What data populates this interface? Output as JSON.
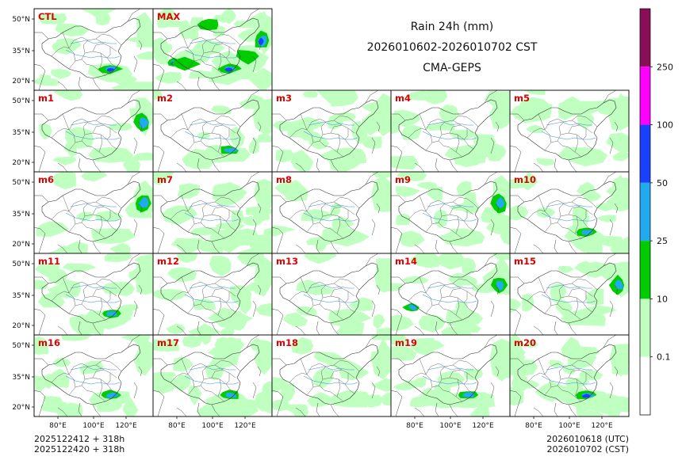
{
  "title": {
    "line1": "Rain 24h (mm)",
    "line2": "2026010602-2026010702 CST",
    "line3": "CMA-GEPS"
  },
  "footer": {
    "left1": "2025122412 + 318h",
    "left2": "2025122420 + 318h",
    "right1": "2026010618 (UTC)",
    "right2": "2026010702 (CST)"
  },
  "chart_data": {
    "type": "heatmap",
    "description_kind": "ensemble precipitation map panels",
    "panels": [
      {
        "label": "CTL",
        "row": 0,
        "col": 0,
        "coverage": "light",
        "heavy": [
          "south-china"
        ]
      },
      {
        "label": "MAX",
        "row": 0,
        "col": 1,
        "coverage": "wide",
        "heavy": [
          "south-china",
          "east-coast",
          "southwest"
        ]
      },
      {
        "label": "m1",
        "row": 1,
        "col": 0,
        "coverage": "sparse",
        "heavy": [
          "east-coast"
        ]
      },
      {
        "label": "m2",
        "row": 1,
        "col": 1,
        "coverage": "sparse",
        "heavy": [
          "south-china"
        ]
      },
      {
        "label": "m3",
        "row": 1,
        "col": 2,
        "coverage": "moderate",
        "heavy": []
      },
      {
        "label": "m4",
        "row": 1,
        "col": 3,
        "coverage": "moderate",
        "heavy": []
      },
      {
        "label": "m5",
        "row": 1,
        "col": 4,
        "coverage": "moderate",
        "heavy": []
      },
      {
        "label": "m6",
        "row": 2,
        "col": 0,
        "coverage": "sparse",
        "heavy": [
          "east-coast"
        ]
      },
      {
        "label": "m7",
        "row": 2,
        "col": 1,
        "coverage": "wide",
        "heavy": []
      },
      {
        "label": "m8",
        "row": 2,
        "col": 2,
        "coverage": "sparse",
        "heavy": []
      },
      {
        "label": "m9",
        "row": 2,
        "col": 3,
        "coverage": "moderate",
        "heavy": [
          "east-coast"
        ]
      },
      {
        "label": "m10",
        "row": 2,
        "col": 4,
        "coverage": "moderate",
        "heavy": [
          "south-china"
        ]
      },
      {
        "label": "m11",
        "row": 3,
        "col": 0,
        "coverage": "moderate",
        "heavy": [
          "south-china"
        ]
      },
      {
        "label": "m12",
        "row": 3,
        "col": 1,
        "coverage": "moderate",
        "heavy": []
      },
      {
        "label": "m13",
        "row": 3,
        "col": 2,
        "coverage": "sparse",
        "heavy": []
      },
      {
        "label": "m14",
        "row": 3,
        "col": 3,
        "coverage": "moderate",
        "heavy": [
          "southwest",
          "east-coast"
        ]
      },
      {
        "label": "m15",
        "row": 3,
        "col": 4,
        "coverage": "sparse",
        "heavy": [
          "east-coast"
        ]
      },
      {
        "label": "m16",
        "row": 4,
        "col": 0,
        "coverage": "moderate",
        "heavy": [
          "south-china"
        ]
      },
      {
        "label": "m17",
        "row": 4,
        "col": 1,
        "coverage": "wide",
        "heavy": [
          "south-china"
        ]
      },
      {
        "label": "m18",
        "row": 4,
        "col": 2,
        "coverage": "moderate",
        "heavy": []
      },
      {
        "label": "m19",
        "row": 4,
        "col": 3,
        "coverage": "moderate",
        "heavy": [
          "south-china"
        ]
      },
      {
        "label": "m20",
        "row": 4,
        "col": 4,
        "coverage": "wide",
        "heavy": [
          "south-china"
        ]
      }
    ],
    "y_ticks": [
      "50°N",
      "35°N",
      "20°N"
    ],
    "x_ticks": [
      "80°E",
      "100°E",
      "120°E"
    ],
    "colorbar": {
      "levels": [
        0.1,
        10,
        25,
        50,
        100,
        250
      ],
      "tick_labels": [
        "0.1",
        "10",
        "25",
        "50",
        "100",
        "250"
      ],
      "colors": [
        "#ffffff",
        "#bfffbf",
        "#00cc00",
        "#22aaf0",
        "#1940ff",
        "#ff00ff",
        "#8a0e55"
      ]
    },
    "label_color": "#e00000"
  }
}
